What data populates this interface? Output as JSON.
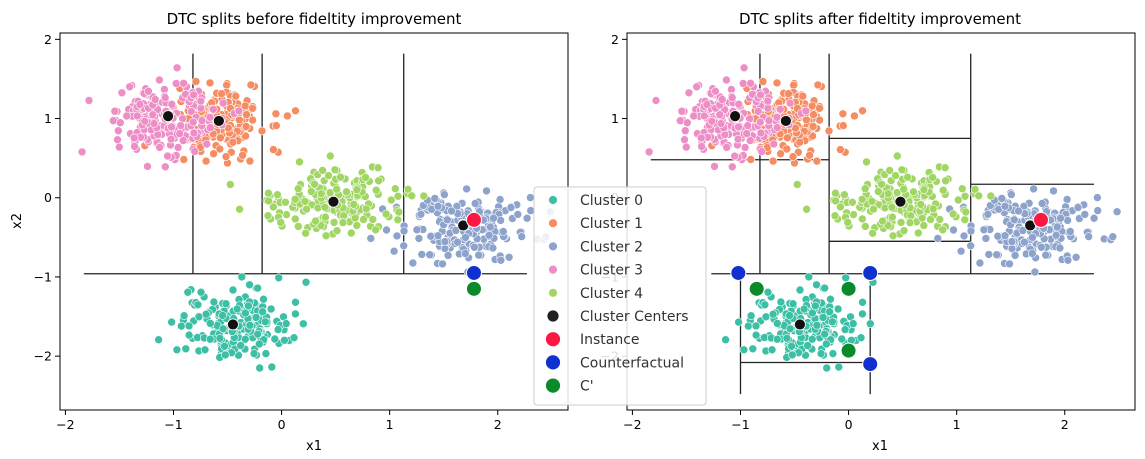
{
  "chart_data": [
    {
      "type": "scatter",
      "title": "DTC splits before fideltity improvement",
      "xlabel": "x1",
      "ylabel": "x2",
      "xlim": [
        -2.05,
        2.65
      ],
      "ylim": [
        -2.68,
        2.08
      ],
      "xticks": [
        -2,
        -1,
        0,
        1,
        2
      ],
      "yticks": [
        -2,
        -1,
        0,
        1,
        2
      ],
      "show_legend": true,
      "legend_location": "right",
      "series": [
        {
          "name": "Cluster 0",
          "color": "#3cbfa5",
          "center": [
            -0.45,
            -1.6
          ],
          "spread": [
            0.25,
            0.22
          ],
          "count": 190
        },
        {
          "name": "Cluster 1",
          "color": "#f58c62",
          "center": [
            -0.58,
            0.97
          ],
          "spread": [
            0.22,
            0.22
          ],
          "count": 190
        },
        {
          "name": "Cluster 2",
          "color": "#8ea3cc",
          "center": [
            1.68,
            -0.35
          ],
          "spread": [
            0.3,
            0.22
          ],
          "count": 190
        },
        {
          "name": "Cluster 3",
          "color": "#ee8ec7",
          "center": [
            -1.05,
            1.03
          ],
          "spread": [
            0.25,
            0.24
          ],
          "count": 190
        },
        {
          "name": "Cluster 4",
          "color": "#a1d664",
          "center": [
            0.48,
            -0.05
          ],
          "spread": [
            0.32,
            0.2
          ],
          "count": 190
        }
      ],
      "cluster_centers": {
        "name": "Cluster Centers",
        "color": "#111111",
        "points": [
          [
            -0.45,
            -1.6
          ],
          [
            -0.58,
            0.97
          ],
          [
            1.68,
            -0.35
          ],
          [
            -1.05,
            1.03
          ],
          [
            0.48,
            -0.05
          ]
        ]
      },
      "instance": {
        "name": "Instance",
        "color": "#ff1744",
        "points": [
          [
            1.78,
            -0.28
          ]
        ]
      },
      "counterfactual": {
        "name": "Counterfactual",
        "color": "#1030d0",
        "points": [
          [
            1.78,
            -0.95
          ]
        ]
      },
      "c_prime": {
        "name": "C'",
        "color": "#0a8a2a",
        "points": [
          [
            1.78,
            -1.15
          ]
        ]
      },
      "split_lines": [
        [
          [
            -1.83,
            -0.96
          ],
          [
            2.27,
            -0.96
          ]
        ],
        [
          [
            -0.82,
            -0.96
          ],
          [
            -0.82,
            1.82
          ]
        ],
        [
          [
            -0.18,
            -0.96
          ],
          [
            -0.18,
            1.82
          ]
        ],
        [
          [
            1.13,
            -0.96
          ],
          [
            1.13,
            1.82
          ]
        ]
      ]
    },
    {
      "type": "scatter",
      "title": "DTC splits after fideltity improvement",
      "xlabel": "x1",
      "ylabel": "",
      "xlim": [
        -2.05,
        2.65
      ],
      "ylim": [
        -2.68,
        2.08
      ],
      "xticks": [
        -2,
        -1,
        0,
        1,
        2
      ],
      "yticks": [
        -2,
        -1,
        0,
        1,
        2
      ],
      "show_legend": false,
      "series": [
        {
          "name": "Cluster 0",
          "color": "#3cbfa5",
          "center": [
            -0.45,
            -1.6
          ],
          "spread": [
            0.25,
            0.22
          ],
          "count": 190
        },
        {
          "name": "Cluster 1",
          "color": "#f58c62",
          "center": [
            -0.58,
            0.97
          ],
          "spread": [
            0.22,
            0.22
          ],
          "count": 190
        },
        {
          "name": "Cluster 2",
          "color": "#8ea3cc",
          "center": [
            1.68,
            -0.35
          ],
          "spread": [
            0.3,
            0.22
          ],
          "count": 190
        },
        {
          "name": "Cluster 3",
          "color": "#ee8ec7",
          "center": [
            -1.05,
            1.03
          ],
          "spread": [
            0.25,
            0.24
          ],
          "count": 190
        },
        {
          "name": "Cluster 4",
          "color": "#a1d664",
          "center": [
            0.48,
            -0.05
          ],
          "spread": [
            0.32,
            0.2
          ],
          "count": 190
        }
      ],
      "cluster_centers": {
        "name": "Cluster Centers",
        "color": "#111111",
        "points": [
          [
            -0.45,
            -1.6
          ],
          [
            -0.58,
            0.97
          ],
          [
            1.68,
            -0.35
          ],
          [
            -1.05,
            1.03
          ],
          [
            0.48,
            -0.05
          ]
        ]
      },
      "instance": {
        "name": "Instance",
        "color": "#ff1744",
        "points": [
          [
            1.78,
            -0.28
          ]
        ]
      },
      "counterfactual": {
        "name": "Counterfactual",
        "color": "#1030d0",
        "points": [
          [
            -1.02,
            -0.95
          ],
          [
            0.2,
            -0.95
          ],
          [
            0.2,
            -2.1
          ]
        ]
      },
      "c_prime": {
        "name": "C'",
        "color": "#0a8a2a",
        "points": [
          [
            -0.85,
            -1.15
          ],
          [
            0.0,
            -1.15
          ],
          [
            0.0,
            -1.93
          ]
        ]
      },
      "split_lines": [
        [
          [
            -1.83,
            0.48
          ],
          [
            -0.18,
            0.48
          ]
        ],
        [
          [
            -0.82,
            1.82
          ],
          [
            -0.82,
            -0.96
          ]
        ],
        [
          [
            -0.18,
            1.82
          ],
          [
            -0.18,
            -0.96
          ]
        ],
        [
          [
            -0.18,
            0.75
          ],
          [
            1.13,
            0.75
          ]
        ],
        [
          [
            1.13,
            1.82
          ],
          [
            1.13,
            -0.96
          ]
        ],
        [
          [
            -0.18,
            -0.55
          ],
          [
            1.13,
            -0.55
          ]
        ],
        [
          [
            1.13,
            0.17
          ],
          [
            2.27,
            0.17
          ]
        ],
        [
          [
            -1.27,
            -0.96
          ],
          [
            2.27,
            -0.96
          ]
        ],
        [
          [
            -1.0,
            -0.96
          ],
          [
            -1.0,
            -2.48
          ]
        ],
        [
          [
            0.2,
            -0.96
          ],
          [
            0.2,
            -2.48
          ]
        ],
        [
          [
            -1.0,
            -2.08
          ],
          [
            0.2,
            -2.08
          ]
        ]
      ]
    }
  ],
  "legend": {
    "items": [
      {
        "label": "Cluster 0",
        "color": "#3cbfa5",
        "size": "small"
      },
      {
        "label": "Cluster 1",
        "color": "#f58c62",
        "size": "small"
      },
      {
        "label": "Cluster 2",
        "color": "#8ea3cc",
        "size": "small"
      },
      {
        "label": "Cluster 3",
        "color": "#ee8ec7",
        "size": "small"
      },
      {
        "label": "Cluster 4",
        "color": "#a1d664",
        "size": "small"
      },
      {
        "label": "Cluster Centers",
        "color": "#222222",
        "size": "medium"
      },
      {
        "label": "Instance",
        "color": "#ff1744",
        "size": "large"
      },
      {
        "label": "Counterfactual",
        "color": "#1030d0",
        "size": "large"
      },
      {
        "label": "C'",
        "color": "#0a8a2a",
        "size": "large"
      }
    ]
  }
}
